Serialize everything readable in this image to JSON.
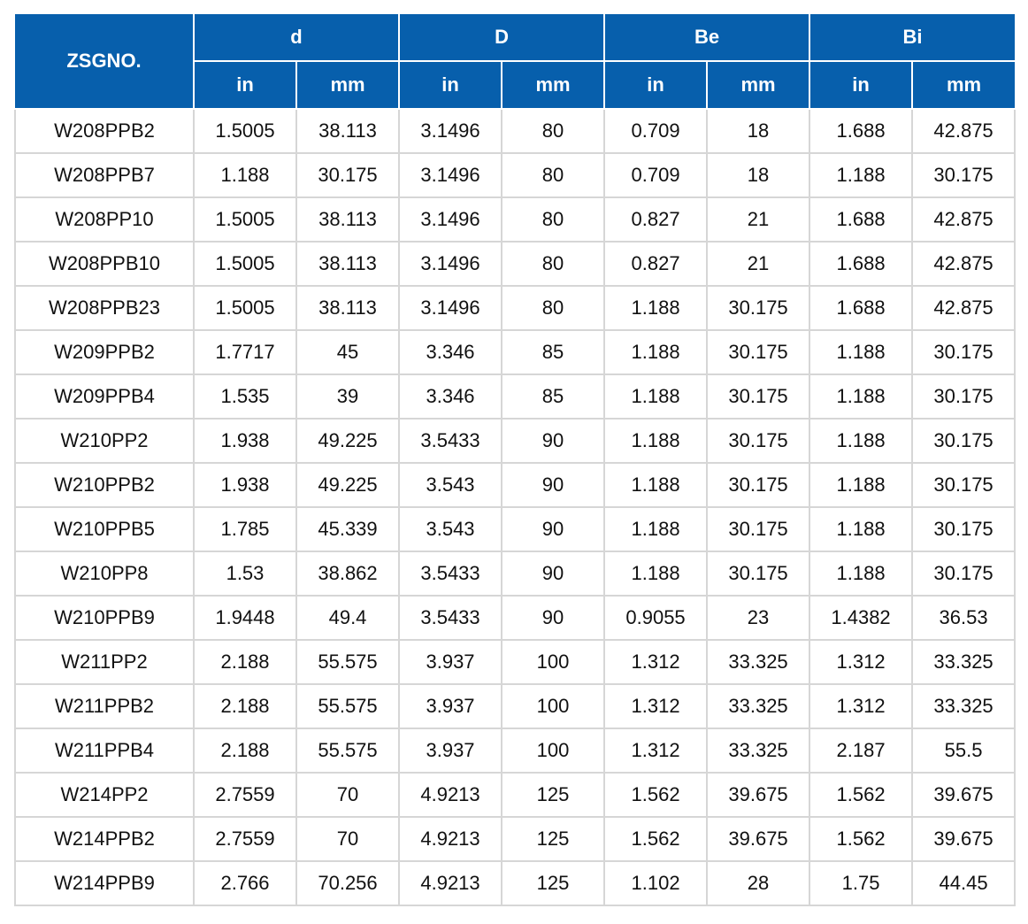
{
  "table": {
    "model_header": "ZSGNO.",
    "groups": [
      "d",
      "D",
      "Be",
      "Bi"
    ],
    "units": [
      "in",
      "mm",
      "in",
      "mm",
      "in",
      "mm",
      "in",
      "mm"
    ],
    "rows": [
      [
        "W208PPB2",
        "1.5005",
        "38.113",
        "3.1496",
        "80",
        "0.709",
        "18",
        "1.688",
        "42.875"
      ],
      [
        "W208PPB7",
        "1.188",
        "30.175",
        "3.1496",
        "80",
        "0.709",
        "18",
        "1.188",
        "30.175"
      ],
      [
        "W208PP10",
        "1.5005",
        "38.113",
        "3.1496",
        "80",
        "0.827",
        "21",
        "1.688",
        "42.875"
      ],
      [
        "W208PPB10",
        "1.5005",
        "38.113",
        "3.1496",
        "80",
        "0.827",
        "21",
        "1.688",
        "42.875"
      ],
      [
        "W208PPB23",
        "1.5005",
        "38.113",
        "3.1496",
        "80",
        "1.188",
        "30.175",
        "1.688",
        "42.875"
      ],
      [
        "W209PPB2",
        "1.7717",
        "45",
        "3.346",
        "85",
        "1.188",
        "30.175",
        "1.188",
        "30.175"
      ],
      [
        "W209PPB4",
        "1.535",
        "39",
        "3.346",
        "85",
        "1.188",
        "30.175",
        "1.188",
        "30.175"
      ],
      [
        "W210PP2",
        "1.938",
        "49.225",
        "3.5433",
        "90",
        "1.188",
        "30.175",
        "1.188",
        "30.175"
      ],
      [
        "W210PPB2",
        "1.938",
        "49.225",
        "3.543",
        "90",
        "1.188",
        "30.175",
        "1.188",
        "30.175"
      ],
      [
        "W210PPB5",
        "1.785",
        "45.339",
        "3.543",
        "90",
        "1.188",
        "30.175",
        "1.188",
        "30.175"
      ],
      [
        "W210PP8",
        "1.53",
        "38.862",
        "3.5433",
        "90",
        "1.188",
        "30.175",
        "1.188",
        "30.175"
      ],
      [
        "W210PPB9",
        "1.9448",
        "49.4",
        "3.5433",
        "90",
        "0.9055",
        "23",
        "1.4382",
        "36.53"
      ],
      [
        "W211PP2",
        "2.188",
        "55.575",
        "3.937",
        "100",
        "1.312",
        "33.325",
        "1.312",
        "33.325"
      ],
      [
        "W211PPB2",
        "2.188",
        "55.575",
        "3.937",
        "100",
        "1.312",
        "33.325",
        "1.312",
        "33.325"
      ],
      [
        "W211PPB4",
        "2.188",
        "55.575",
        "3.937",
        "100",
        "1.312",
        "33.325",
        "2.187",
        "55.5"
      ],
      [
        "W214PP2",
        "2.7559",
        "70",
        "4.9213",
        "125",
        "1.562",
        "39.675",
        "1.562",
        "39.675"
      ],
      [
        "W214PPB2",
        "2.7559",
        "70",
        "4.9213",
        "125",
        "1.562",
        "39.675",
        "1.562",
        "39.675"
      ],
      [
        "W214PPB9",
        "2.766",
        "70.256",
        "4.9213",
        "125",
        "1.102",
        "28",
        "1.75",
        "44.45"
      ]
    ]
  },
  "colors": {
    "header_background": "#075fac",
    "header_text": "#ffffff",
    "grid_line": "#d6d6d6",
    "cell_text": "#111111"
  }
}
